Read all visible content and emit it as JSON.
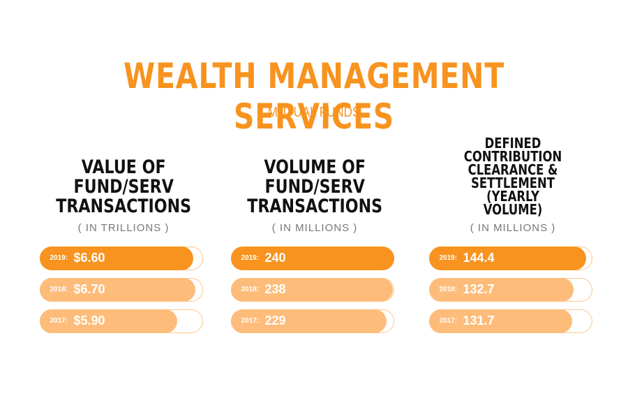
{
  "header": {
    "title": "WEALTH MANAGEMENT SERVICES",
    "subtitle": "MUTUAL FUNDS"
  },
  "colors": {
    "accent": "#F7931E",
    "accent_light": "#FDBC7A",
    "track_border": "#FBC58C",
    "heading": "#111111"
  },
  "chart_data": [
    {
      "type": "bar",
      "orientation": "horizontal",
      "title": "VALUE OF\nFUND/SERV\nTRANSACTIONS",
      "unit": "( IN TRILLIONS )",
      "categories": [
        "2019:",
        "2018:",
        "2017:"
      ],
      "values": [
        6.6,
        6.7,
        5.9
      ],
      "labels": [
        "$6.60",
        "$6.70",
        "$5.90"
      ],
      "ylim": [
        0,
        7.0
      ]
    },
    {
      "type": "bar",
      "orientation": "horizontal",
      "title": "VOLUME OF\nFUND/SERV\nTRANSACTIONS",
      "unit": "( IN MILLIONS )",
      "categories": [
        "2019:",
        "2018:",
        "2017:"
      ],
      "values": [
        240,
        238,
        229
      ],
      "labels": [
        "240",
        "238",
        "229"
      ],
      "ylim": [
        0,
        240
      ]
    },
    {
      "type": "bar",
      "orientation": "horizontal",
      "title": "DEFINED CONTRIBUTION\nCLEARANCE &\nSETTLEMENT (YEARLY\nVOLUME)",
      "unit": "( IN MILLIONS )",
      "categories": [
        "2019:",
        "2018:",
        "2017:"
      ],
      "values": [
        144.4,
        132.7,
        131.7
      ],
      "labels": [
        "144.4",
        "132.7",
        "131.7"
      ],
      "ylim": [
        0,
        150
      ]
    }
  ]
}
